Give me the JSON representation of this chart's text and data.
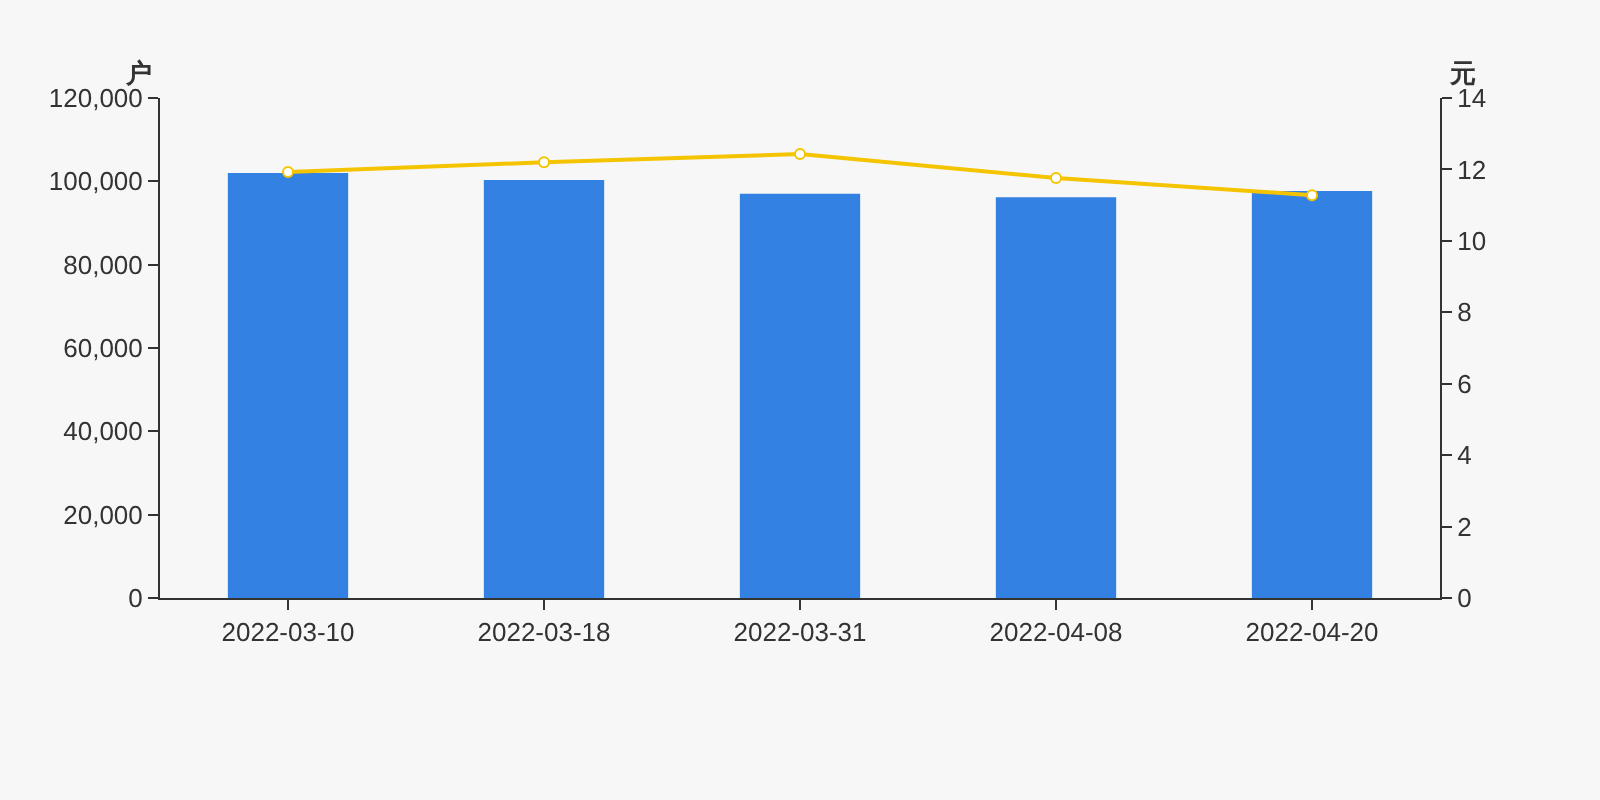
{
  "chart_data": {
    "type": "bar",
    "ylabel": "户",
    "y2label": "元",
    "categories": [
      "2022-03-10",
      "2022-03-18",
      "2022-03-31",
      "2022-04-08",
      "2022-04-20"
    ],
    "series": [
      {
        "color": "#3381e3",
        "values": [
          102000,
          100300,
          97000,
          96200,
          97700
        ]
      },
      {
        "type": "line",
        "axis": "y2",
        "color": "#f5c400",
        "marker": "circle",
        "values": [
          11.93,
          12.2,
          12.43,
          11.76,
          11.28
        ]
      }
    ],
    "ylim": [
      0,
      120000
    ],
    "yticks": [
      {
        "value": 0,
        "label": "0"
      },
      {
        "value": 20000,
        "label": "20,000"
      },
      {
        "value": 40000,
        "label": "40,000"
      },
      {
        "value": 60000,
        "label": "60,000"
      },
      {
        "value": 80000,
        "label": "80,000"
      },
      {
        "value": 100000,
        "label": "100,000"
      },
      {
        "value": 120000,
        "label": "120,000"
      }
    ],
    "y2lim": [
      0,
      14
    ],
    "y2ticks": [
      0,
      2,
      4,
      6,
      8,
      10,
      12,
      14
    ],
    "grid": false,
    "legend": false
  }
}
